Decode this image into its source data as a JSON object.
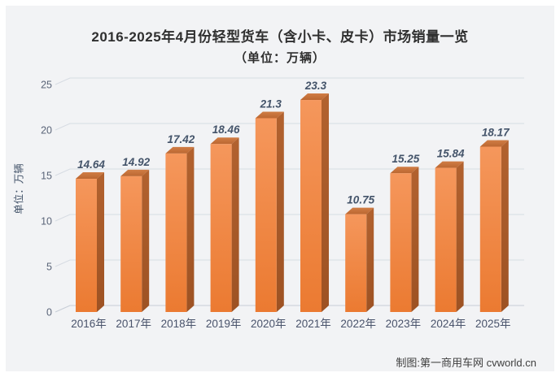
{
  "title": {
    "line1": "2016-2025年4月份轻型货车（含小卡、皮卡）市场销量一览",
    "line2": "（单位：万辆）"
  },
  "y_axis_label": "单位：万辆",
  "credit": "制图:第一商用车网 cvworld.cn",
  "colors": {
    "page_bg": "#ffffff",
    "panel_bg": "#f2f3f5",
    "grid": "#d7dce3",
    "grid_zero": "#c7cdd6",
    "bar_front_light": "#f5975c",
    "bar_front_dark": "#eb7a31",
    "bar_side_light": "#b2622f",
    "bar_side_dark": "#9d5223",
    "bar_top_light": "#d07d45",
    "bar_top_dark": "#bb6731",
    "data_label": "#44546a",
    "tick_label": "#5a6478",
    "x_label": "#49536b",
    "title_text": "#2f2f2f",
    "credit_text": "#3f3f3f"
  },
  "chart_data": {
    "type": "bar",
    "style": "3d-column",
    "title": "2016-2025年4月份轻型货车（含小卡、皮卡）市场销量一览（单位：万辆）",
    "categories": [
      "2016年",
      "2017年",
      "2018年",
      "2019年",
      "2020年",
      "2021年",
      "2022年",
      "2023年",
      "2024年",
      "2025年"
    ],
    "values": [
      14.64,
      14.92,
      17.42,
      18.46,
      21.3,
      23.3,
      10.75,
      15.25,
      15.84,
      18.17
    ],
    "xlabel": "",
    "ylabel": "单位：万辆",
    "ylim": [
      0,
      25
    ],
    "yticks": [
      0,
      5,
      10,
      15,
      20,
      25
    ],
    "grid": true,
    "legend": false
  }
}
